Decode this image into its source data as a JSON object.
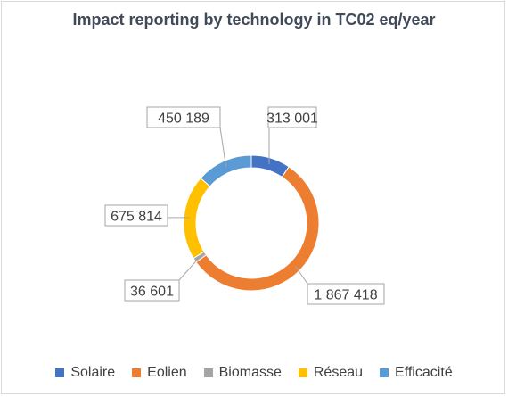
{
  "chart_data": {
    "type": "pie",
    "subtype": "donut",
    "title": "Impact reporting by technology in TC02 eq/year",
    "series": [
      {
        "name": "Solaire",
        "value": 313001,
        "label": "313 001",
        "color": "#4472c4"
      },
      {
        "name": "Eolien",
        "value": 1867418,
        "label": "1 867 418",
        "color": "#ed7d31"
      },
      {
        "name": "Biomasse",
        "value": 36601,
        "label": "36 601",
        "color": "#a5a5a5"
      },
      {
        "name": "Réseau",
        "value": 675814,
        "label": "675 814",
        "color": "#ffc000"
      },
      {
        "name": "Efficacité",
        "value": 450189,
        "label": "450 189",
        "color": "#5b9bd5"
      }
    ],
    "legend_position": "bottom"
  }
}
